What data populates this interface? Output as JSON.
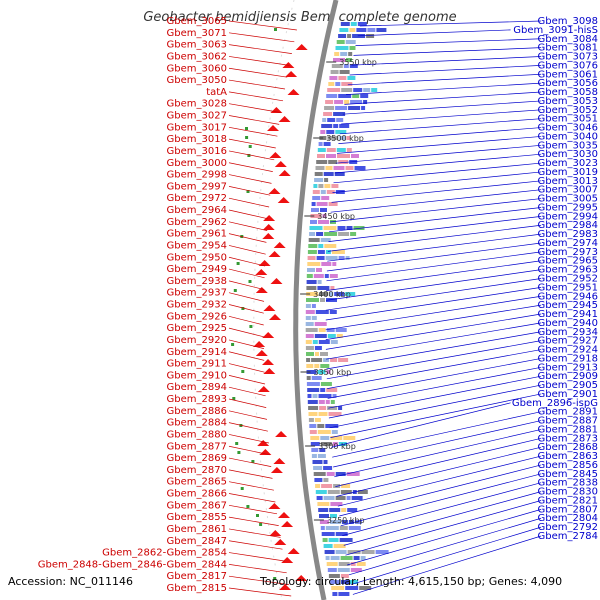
{
  "title": "Geobacter bemidjiensis Bem, complete genome",
  "footer": {
    "accession": "Accession: NC_011146",
    "topology": "Topology: circular; Length: 4,615,150 bp; Genes: 4,090"
  },
  "colors": {
    "left_label": "#cc0000",
    "right_label": "#0000cc",
    "backbone": "#888888",
    "tick": "#339933"
  },
  "left_labels": [
    "Gbem_3065",
    "Gbem_3071",
    "Gbem_3063",
    "Gbem_3062",
    "Gbem_3060",
    "Gbem_3050",
    "tatA",
    "Gbem_3028",
    "Gbem_3027",
    "Gbem_3017",
    "Gbem_3018",
    "Gbem_3016",
    "Gbem_3000",
    "Gbem_2998",
    "Gbem_2997",
    "Gbem_2972",
    "Gbem_2964",
    "Gbem_2962",
    "Gbem_2961",
    "Gbem_2954",
    "Gbem_2950",
    "Gbem_2949",
    "Gbem_2938",
    "Gbem_2937",
    "Gbem_2932",
    "Gbem_2926",
    "Gbem_2925",
    "Gbem_2920",
    "Gbem_2914",
    "Gbem_2911",
    "Gbem_2910",
    "Gbem_2894",
    "Gbem_2893",
    "Gbem_2886",
    "Gbem_2884",
    "Gbem_2880",
    "Gbem_2877",
    "Gbem_2869",
    "Gbem_2870",
    "Gbem_2865",
    "Gbem_2866",
    "Gbem_2867",
    "Gbem_2855",
    "Gbem_2861",
    "Gbem_2847",
    "Gbem_2862-Gbem_2854",
    "Gbem_2848-Gbem_2846-Gbem_2844",
    "Gbem_2817",
    "Gbem_2815"
  ],
  "right_labels": [
    "Gbem_3098",
    "Gbem_3091-hisS",
    "Gbem_3084",
    "Gbem_3081",
    "Gbem_3073",
    "Gbem_3076",
    "Gbem_3061",
    "Gbem_3056",
    "Gbem_3058",
    "Gbem_3053",
    "Gbem_3052",
    "Gbem_3051",
    "Gbem_3046",
    "Gbem_3040",
    "Gbem_3035",
    "Gbem_3030",
    "Gbem_3023",
    "Gbem_3019",
    "Gbem_3013",
    "Gbem_3007",
    "Gbem_3005",
    "Gbem_2995",
    "Gbem_2994",
    "Gbem_2984",
    "Gbem_2983",
    "Gbem_2974",
    "Gbem_2973",
    "Gbem_2965",
    "Gbem_2963",
    "Gbem_2952",
    "Gbem_2951",
    "Gbem_2946",
    "Gbem_2945",
    "Gbem_2941",
    "Gbem_2940",
    "Gbem_2934",
    "Gbem_2927",
    "Gbem_2924",
    "Gbem_2918",
    "Gbem_2913",
    "Gbem_2909",
    "Gbem_2905",
    "Gbem_2901",
    "Gbem_2896-ispG",
    "Gbem_2891",
    "Gbem_2887",
    "Gbem_2881",
    "Gbem_2873",
    "Gbem_2868",
    "Gbem_2863",
    "Gbem_2856",
    "Gbem_2845",
    "Gbem_2838",
    "Gbem_2830",
    "Gbem_2821",
    "Gbem_2807",
    "Gbem_2804",
    "Gbem_2792",
    "Gbem_2784"
  ],
  "scale_ticks": [
    "3550 kbp",
    "3500 kbp",
    "3450 kbp",
    "3400 kbp",
    "3350 kbp",
    "3300 kbp",
    "3250 kbp"
  ]
}
